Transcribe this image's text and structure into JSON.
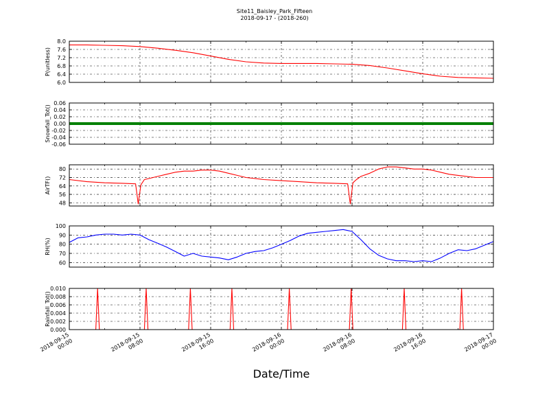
{
  "figure": {
    "title_line1": "Site11_Baisley_Park_Fifteen",
    "title_line2": "2018-09-17 - (2018-260)",
    "xlabel": "Date/Time",
    "x_tick_labels": [
      [
        "2018-09-15",
        "00:00"
      ],
      [
        "2018-09-15",
        "08:00"
      ],
      [
        "2018-09-15",
        "16:00"
      ],
      [
        "2018-09-16",
        "00:00"
      ],
      [
        "2018-09-16",
        "08:00"
      ],
      [
        "2018-09-16",
        "16:00"
      ],
      [
        "2018-09-17",
        "00:00"
      ]
    ]
  },
  "chart_data": [
    {
      "type": "line",
      "ylabel": "P(unitless)",
      "ylim": [
        6.0,
        8.0
      ],
      "yticks": [
        "6.0",
        "6.4",
        "6.8",
        "7.2",
        "7.6",
        "8.0"
      ],
      "grid": true,
      "series": [
        {
          "color": "#ff0000",
          "x_hours": [
            0,
            2,
            4,
            6,
            8,
            10,
            12,
            14,
            16,
            18,
            20,
            22,
            24,
            26,
            28,
            30,
            32,
            34,
            36,
            38,
            40,
            42,
            44,
            46,
            48
          ],
          "values": [
            7.82,
            7.82,
            7.8,
            7.78,
            7.74,
            7.66,
            7.56,
            7.44,
            7.28,
            7.12,
            7.0,
            6.94,
            6.92,
            6.92,
            6.92,
            6.9,
            6.88,
            6.82,
            6.7,
            6.56,
            6.42,
            6.3,
            6.24,
            6.22,
            6.2
          ]
        }
      ]
    },
    {
      "type": "line",
      "ylabel": "Snowfall_Tot()",
      "ylim": [
        -0.06,
        0.06
      ],
      "yticks": [
        "-0.06",
        "-0.04",
        "-0.02",
        "0.00",
        "0.02",
        "0.04",
        "0.06"
      ],
      "grid": true,
      "series": [
        {
          "color": "#008000",
          "x_hours": [
            0,
            48
          ],
          "values": [
            0.0,
            0.0
          ]
        }
      ]
    },
    {
      "type": "line",
      "ylabel": "AirTF()",
      "ylim": [
        45,
        84
      ],
      "yticks": [
        "48",
        "56",
        "64",
        "72",
        "80"
      ],
      "grid": true,
      "series": [
        {
          "color": "#ff0000",
          "x_hours": [
            0,
            2,
            4,
            6,
            7.5,
            7.8,
            8.1,
            8.5,
            9,
            10,
            11,
            12,
            13,
            14,
            15,
            16,
            17,
            18,
            19,
            20,
            22,
            24,
            26,
            28,
            30,
            31.5,
            31.8,
            32.1,
            32.5,
            33,
            34,
            35,
            36,
            37,
            38,
            39,
            40,
            41,
            42,
            43,
            44,
            46,
            48
          ],
          "values": [
            70,
            68,
            67,
            66.5,
            66,
            47,
            65,
            70,
            71,
            73,
            75,
            77,
            78,
            78,
            79,
            79,
            78,
            76,
            74,
            72,
            70,
            69,
            68,
            67,
            66.5,
            66,
            47,
            67,
            70,
            73,
            76,
            80,
            82,
            82,
            81,
            80,
            80,
            79,
            77,
            75,
            74,
            72,
            72
          ]
        }
      ]
    },
    {
      "type": "line",
      "ylabel": "RH(%)",
      "ylim": [
        55,
        100
      ],
      "yticks": [
        "60",
        "70",
        "80",
        "90",
        "100"
      ],
      "grid": true,
      "series": [
        {
          "color": "#0000ff",
          "x_hours": [
            0,
            1,
            2,
            3,
            4,
            5,
            6,
            7,
            8,
            9,
            10,
            11,
            12,
            13,
            14,
            15,
            16,
            17,
            18,
            19,
            20,
            21,
            22,
            23,
            24,
            25,
            26,
            27,
            28,
            29,
            30,
            31,
            31.5,
            32,
            33,
            34,
            35,
            36,
            37,
            38,
            39,
            40,
            41,
            42,
            43,
            44,
            45,
            46,
            47,
            48
          ],
          "values": [
            82,
            87,
            88,
            90,
            91,
            91,
            90,
            91,
            90,
            85,
            81,
            77,
            72,
            67,
            70,
            67,
            66,
            65,
            63,
            66,
            70,
            72,
            73,
            76,
            80,
            84,
            89,
            92,
            93,
            94,
            95,
            96,
            95,
            94,
            85,
            75,
            68,
            64,
            62,
            62,
            61,
            62,
            61,
            65,
            70,
            74,
            73,
            75,
            79,
            83
          ]
        }
      ]
    },
    {
      "type": "line",
      "ylabel": "Rainfall_Tot()",
      "ylim": [
        0.0,
        0.01
      ],
      "yticks": [
        "0.000",
        "0.002",
        "0.004",
        "0.006",
        "0.008",
        "0.010"
      ],
      "grid": true,
      "series": [
        {
          "color": "#ff0000",
          "x_hours": [
            0,
            3.0,
            3.2,
            3.4,
            8.5,
            8.7,
            8.9,
            13.5,
            13.7,
            13.9,
            18.2,
            18.4,
            18.6,
            24.7,
            24.9,
            25.1,
            31.7,
            31.9,
            32.1,
            37.7,
            37.9,
            38.1,
            44.2,
            44.4,
            44.6,
            48
          ],
          "values": [
            0,
            0,
            0.01,
            0,
            0,
            0.01,
            0,
            0,
            0.01,
            0,
            0,
            0.01,
            0,
            0,
            0.01,
            0,
            0,
            0.01,
            0,
            0,
            0.01,
            0,
            0,
            0.01,
            0,
            0
          ]
        }
      ]
    }
  ]
}
